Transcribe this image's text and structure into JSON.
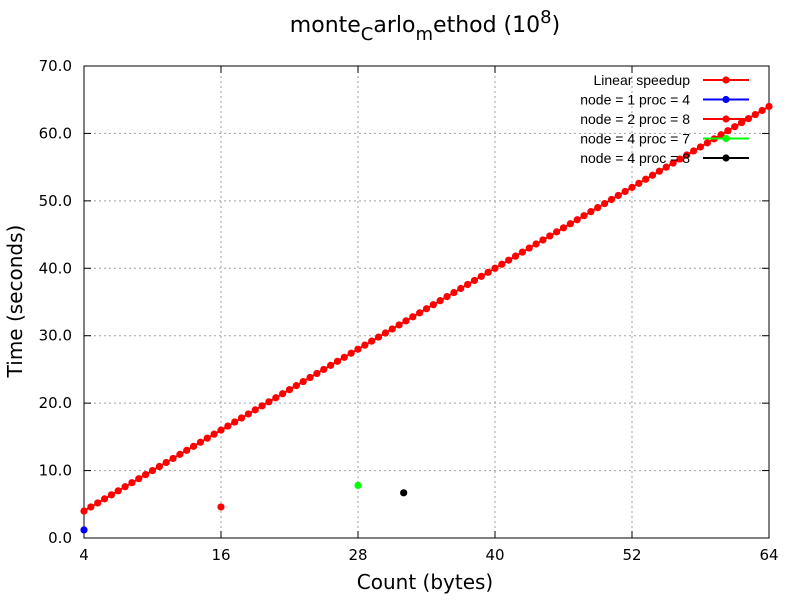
{
  "chart_data": {
    "type": "scatter",
    "title": {
      "prefix": "monte",
      "sub1": "C",
      "mid": "arlo",
      "sub2": "m",
      "suffix": "ethod (10",
      "sup": "8",
      "close": ")"
    },
    "xlabel": "Count (bytes)",
    "ylabel": "Time (seconds)",
    "xlim": [
      4,
      64
    ],
    "ylim": [
      0,
      70
    ],
    "xticks": [
      "4",
      "16",
      "28",
      "40",
      "52",
      "64"
    ],
    "yticks": [
      "0.0",
      "10.0",
      "20.0",
      "30.0",
      "40.0",
      "50.0",
      "60.0",
      "70.0"
    ],
    "grid": true,
    "legend_position": "top-right",
    "series": [
      {
        "name": "Linear speedup",
        "color": "#ff0000",
        "line": true,
        "x": [
          4,
          4.6,
          5.2,
          5.8,
          6.4,
          7,
          7.6,
          8.2,
          8.8,
          9.4,
          10,
          10.6,
          11.2,
          11.8,
          12.4,
          13,
          13.6,
          14.2,
          14.8,
          15.4,
          16,
          16.6,
          17.2,
          17.8,
          18.4,
          19,
          19.6,
          20.2,
          20.8,
          21.4,
          22,
          22.6,
          23.2,
          23.8,
          24.4,
          25,
          25.6,
          26.2,
          26.8,
          27.4,
          28,
          28.6,
          29.2,
          29.8,
          30.4,
          31,
          31.6,
          32.2,
          32.8,
          33.4,
          34,
          34.6,
          35.2,
          35.8,
          36.4,
          37,
          37.6,
          38.2,
          38.8,
          39.4,
          40,
          40.6,
          41.2,
          41.8,
          42.4,
          43,
          43.6,
          44.2,
          44.8,
          45.4,
          46,
          46.6,
          47.2,
          47.8,
          48.4,
          49,
          49.6,
          50.2,
          50.8,
          51.4,
          52,
          52.6,
          53.2,
          53.8,
          54.4,
          55,
          55.6,
          56.2,
          56.8,
          57.4,
          58,
          58.6,
          59.2,
          59.8,
          60.4,
          61,
          61.6,
          62.2,
          62.8,
          63.4,
          64
        ],
        "y": [
          4,
          4.6,
          5.2,
          5.8,
          6.4,
          7,
          7.6,
          8.2,
          8.8,
          9.4,
          10,
          10.6,
          11.2,
          11.8,
          12.4,
          13,
          13.6,
          14.2,
          14.8,
          15.4,
          16,
          16.6,
          17.2,
          17.8,
          18.4,
          19,
          19.6,
          20.2,
          20.8,
          21.4,
          22,
          22.6,
          23.2,
          23.8,
          24.4,
          25,
          25.6,
          26.2,
          26.8,
          27.4,
          28,
          28.6,
          29.2,
          29.8,
          30.4,
          31,
          31.6,
          32.2,
          32.8,
          33.4,
          34,
          34.6,
          35.2,
          35.8,
          36.4,
          37,
          37.6,
          38.2,
          38.8,
          39.4,
          40,
          40.6,
          41.2,
          41.8,
          42.4,
          43,
          43.6,
          44.2,
          44.8,
          45.4,
          46,
          46.6,
          47.2,
          47.8,
          48.4,
          49,
          49.6,
          50.2,
          50.8,
          51.4,
          52,
          52.6,
          53.2,
          53.8,
          54.4,
          55,
          55.6,
          56.2,
          56.8,
          57.4,
          58,
          58.6,
          59.2,
          59.8,
          60.4,
          61,
          61.6,
          62.2,
          62.8,
          63.4,
          64
        ]
      },
      {
        "name": "node = 1 proc = 4",
        "color": "#0000ff",
        "line": false,
        "x": [
          4
        ],
        "y": [
          1.2
        ]
      },
      {
        "name": "node = 2 proc = 8",
        "color": "#ff0000",
        "line": false,
        "x": [
          16
        ],
        "y": [
          4.6
        ]
      },
      {
        "name": "node = 4 proc = 7",
        "color": "#00ff00",
        "line": false,
        "x": [
          28
        ],
        "y": [
          7.8
        ]
      },
      {
        "name": "node = 4 proc = 8",
        "color": "#000000",
        "line": false,
        "x": [
          32
        ],
        "y": [
          6.7
        ]
      }
    ]
  }
}
